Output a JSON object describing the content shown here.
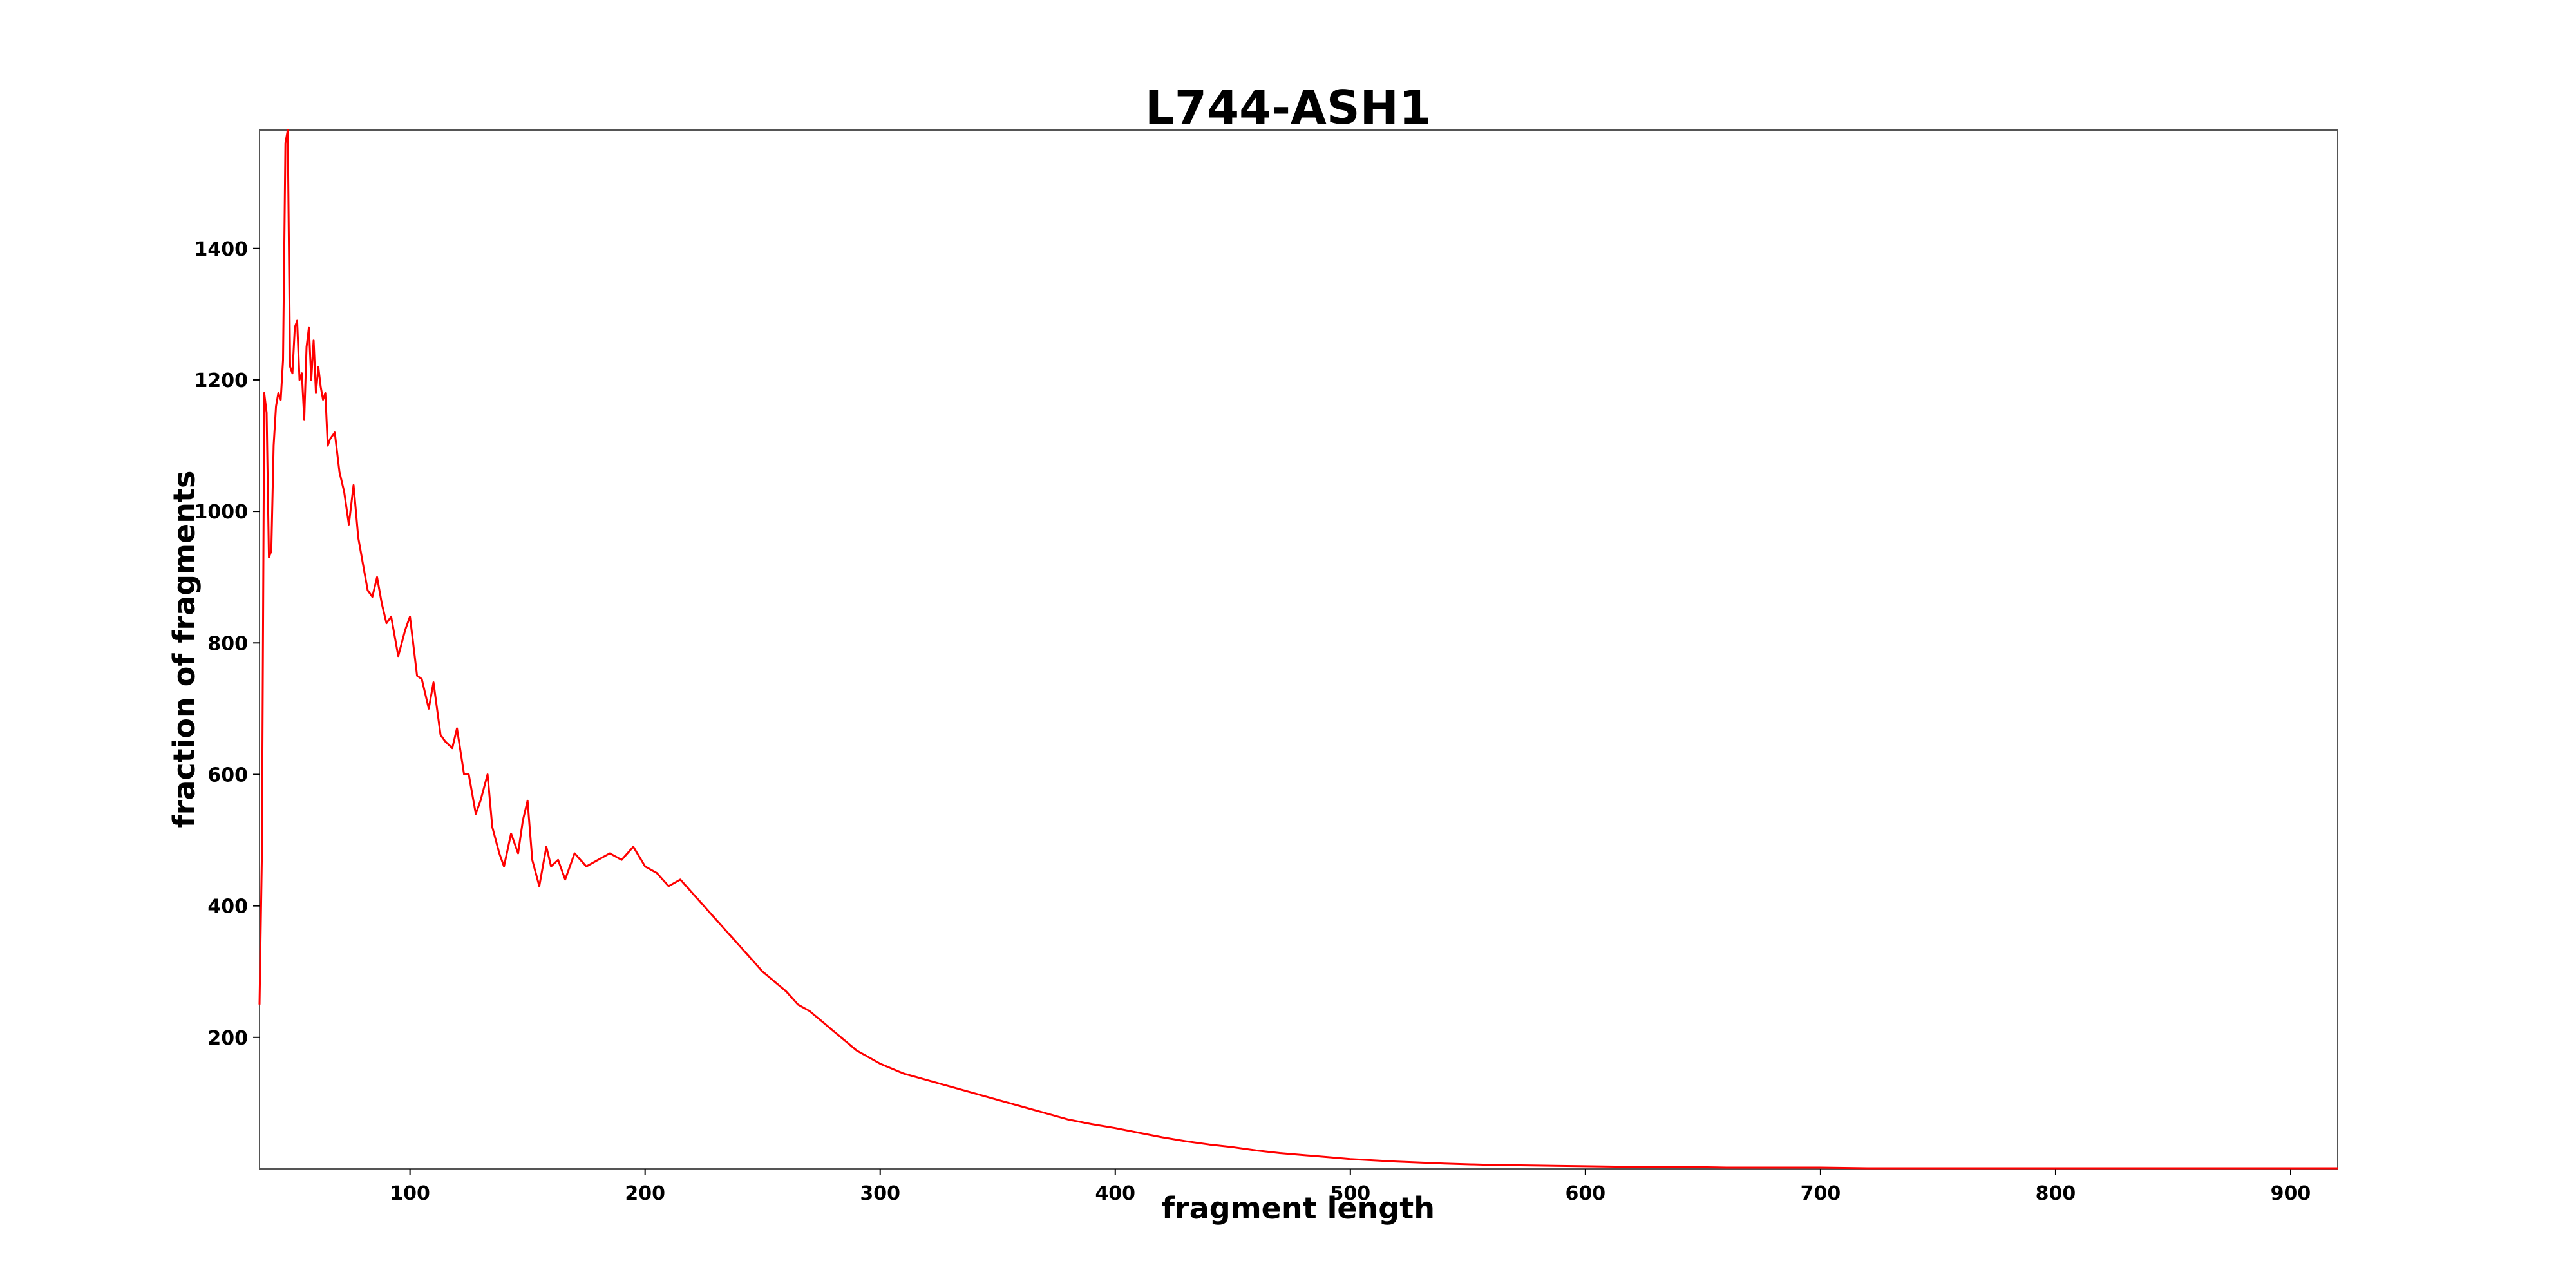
{
  "chart_data": {
    "type": "line",
    "title": "L744-ASH1",
    "xlabel": "fragment length",
    "ylabel": "fraction of fragments",
    "xlim": [
      36,
      920
    ],
    "ylim": [
      0,
      1580
    ],
    "x_ticks": [
      100,
      200,
      300,
      400,
      500,
      600,
      700,
      800,
      900
    ],
    "y_ticks": [
      200,
      400,
      600,
      800,
      1000,
      1200,
      1400
    ],
    "grid": false,
    "legend": "none",
    "series": [
      {
        "color": "#ff0000",
        "x": [
          36,
          37,
          38,
          39,
          40,
          41,
          42,
          43,
          44,
          45,
          46,
          47,
          48,
          49,
          50,
          51,
          52,
          53,
          54,
          55,
          56,
          57,
          58,
          59,
          60,
          61,
          62,
          63,
          64,
          65,
          66,
          68,
          70,
          72,
          74,
          76,
          78,
          80,
          82,
          84,
          86,
          88,
          90,
          92,
          95,
          98,
          100,
          103,
          105,
          108,
          110,
          113,
          115,
          118,
          120,
          123,
          125,
          128,
          130,
          133,
          135,
          138,
          140,
          143,
          146,
          148,
          150,
          152,
          155,
          158,
          160,
          163,
          166,
          170,
          175,
          180,
          185,
          190,
          195,
          200,
          205,
          210,
          215,
          220,
          225,
          230,
          235,
          240,
          245,
          250,
          255,
          260,
          265,
          270,
          275,
          280,
          285,
          290,
          295,
          300,
          310,
          320,
          330,
          340,
          350,
          360,
          370,
          380,
          390,
          400,
          410,
          420,
          430,
          440,
          450,
          460,
          470,
          480,
          490,
          500,
          520,
          540,
          560,
          580,
          600,
          620,
          640,
          660,
          680,
          700,
          720,
          740,
          760,
          780,
          800,
          820,
          840,
          860,
          880,
          900,
          920
        ],
        "y": [
          250,
          480,
          1180,
          1150,
          930,
          940,
          1100,
          1160,
          1180,
          1170,
          1230,
          1560,
          1580,
          1220,
          1210,
          1280,
          1290,
          1200,
          1210,
          1140,
          1250,
          1280,
          1200,
          1260,
          1180,
          1220,
          1190,
          1170,
          1180,
          1100,
          1110,
          1120,
          1060,
          1030,
          980,
          1040,
          960,
          920,
          880,
          870,
          900,
          860,
          830,
          840,
          780,
          820,
          840,
          750,
          745,
          700,
          740,
          660,
          650,
          640,
          670,
          600,
          600,
          540,
          560,
          600,
          520,
          480,
          460,
          510,
          480,
          530,
          560,
          470,
          430,
          490,
          460,
          470,
          440,
          480,
          460,
          470,
          480,
          470,
          490,
          460,
          450,
          430,
          440,
          420,
          400,
          380,
          360,
          340,
          320,
          300,
          285,
          270,
          250,
          240,
          225,
          210,
          195,
          180,
          170,
          160,
          145,
          135,
          125,
          115,
          105,
          95,
          85,
          75,
          68,
          62,
          55,
          48,
          42,
          37,
          33,
          28,
          24,
          21,
          18,
          15,
          11,
          8,
          6,
          5,
          4,
          3,
          3,
          2,
          2,
          2,
          1,
          1,
          1,
          1,
          1,
          1,
          1,
          1,
          1,
          1,
          1
        ]
      }
    ]
  }
}
